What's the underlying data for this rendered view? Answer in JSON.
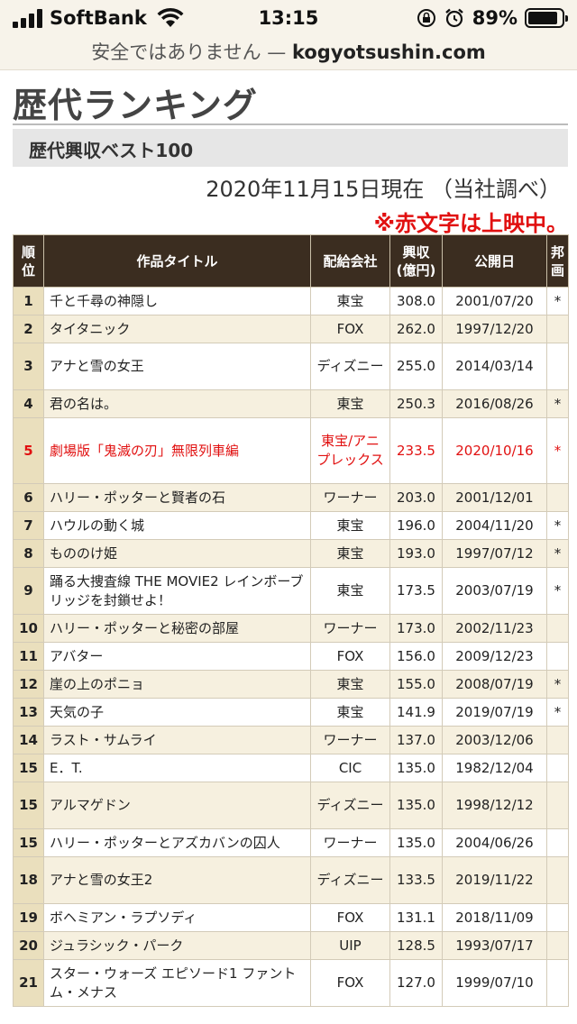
{
  "status_bar": {
    "carrier": "SoftBank",
    "time": "13:15",
    "battery": "89%",
    "battery_level": 0.89
  },
  "url_bar": {
    "security": "安全ではありません — ",
    "domain": "kogyotsushin.com"
  },
  "page_title": "歴代ランキング",
  "section_title": "歴代興収ベスト100",
  "date_note": "2020年11月15日現在 （当社調べ）",
  "red_note": "※赤文字は上映中。",
  "table": {
    "headers": {
      "rank": "順位",
      "title": "作品タイトル",
      "distributor": "配給会社",
      "gross": "興収(億円)",
      "release": "公開日",
      "domestic": "邦画"
    },
    "rows": [
      {
        "rank": "1",
        "title": "千と千尋の神隠し",
        "distributor": "東宝",
        "gross": "308.0",
        "release": "2001/07/20",
        "domestic": "*"
      },
      {
        "rank": "2",
        "title": "タイタニック",
        "distributor": "FOX",
        "gross": "262.0",
        "release": "1997/12/20",
        "domestic": ""
      },
      {
        "rank": "3",
        "title": "アナと雪の女王",
        "distributor": "ディズニー",
        "gross": "255.0",
        "release": "2014/03/14",
        "domestic": ""
      },
      {
        "rank": "4",
        "title": "君の名は。",
        "distributor": "東宝",
        "gross": "250.3",
        "release": "2016/08/26",
        "domestic": "*"
      },
      {
        "rank": "5",
        "title": "劇場版「鬼滅の刃」無限列車編",
        "distributor": "東宝/アニプレックス",
        "gross": "233.5",
        "release": "2020/10/16",
        "domestic": "*",
        "showing": true
      },
      {
        "rank": "6",
        "title": "ハリー・ポッターと賢者の石",
        "distributor": "ワーナー",
        "gross": "203.0",
        "release": "2001/12/01",
        "domestic": ""
      },
      {
        "rank": "7",
        "title": "ハウルの動く城",
        "distributor": "東宝",
        "gross": "196.0",
        "release": "2004/11/20",
        "domestic": "*"
      },
      {
        "rank": "8",
        "title": "もののけ姫",
        "distributor": "東宝",
        "gross": "193.0",
        "release": "1997/07/12",
        "domestic": "*"
      },
      {
        "rank": "9",
        "title": "踊る大捜査線 THE MOVIE2 レインボーブリッジを封鎖せよ！",
        "distributor": "東宝",
        "gross": "173.5",
        "release": "2003/07/19",
        "domestic": "*"
      },
      {
        "rank": "10",
        "title": "ハリー・ポッターと秘密の部屋",
        "distributor": "ワーナー",
        "gross": "173.0",
        "release": "2002/11/23",
        "domestic": ""
      },
      {
        "rank": "11",
        "title": "アバター",
        "distributor": "FOX",
        "gross": "156.0",
        "release": "2009/12/23",
        "domestic": ""
      },
      {
        "rank": "12",
        "title": "崖の上のポニョ",
        "distributor": "東宝",
        "gross": "155.0",
        "release": "2008/07/19",
        "domestic": "*"
      },
      {
        "rank": "13",
        "title": "天気の子",
        "distributor": "東宝",
        "gross": "141.9",
        "release": "2019/07/19",
        "domestic": "*"
      },
      {
        "rank": "14",
        "title": "ラスト・サムライ",
        "distributor": "ワーナー",
        "gross": "137.0",
        "release": "2003/12/06",
        "domestic": ""
      },
      {
        "rank": "15",
        "title": "E．T.",
        "distributor": "CIC",
        "gross": "135.0",
        "release": "1982/12/04",
        "domestic": ""
      },
      {
        "rank": "15",
        "title": "アルマゲドン",
        "distributor": "ディズニー",
        "gross": "135.0",
        "release": "1998/12/12",
        "domestic": ""
      },
      {
        "rank": "15",
        "title": "ハリー・ポッターとアズカバンの囚人",
        "distributor": "ワーナー",
        "gross": "135.0",
        "release": "2004/06/26",
        "domestic": ""
      },
      {
        "rank": "18",
        "title": "アナと雪の女王2",
        "distributor": "ディズニー",
        "gross": "133.5",
        "release": "2019/11/22",
        "domestic": ""
      },
      {
        "rank": "19",
        "title": "ボヘミアン・ラプソディ",
        "distributor": "FOX",
        "gross": "131.1",
        "release": "2018/11/09",
        "domestic": ""
      },
      {
        "rank": "20",
        "title": "ジュラシック・パーク",
        "distributor": "UIP",
        "gross": "128.5",
        "release": "1993/07/17",
        "domestic": ""
      },
      {
        "rank": "21",
        "title": "スター・ウォーズ エピソード1 ファントム・メナス",
        "distributor": "FOX",
        "gross": "127.0",
        "release": "1999/07/10",
        "domestic": ""
      }
    ]
  },
  "colors": {
    "header_bg": "#3b2d20",
    "rank_bg": "#eadfbd",
    "even_row": "#f6f0df",
    "showing": "#e11010"
  }
}
